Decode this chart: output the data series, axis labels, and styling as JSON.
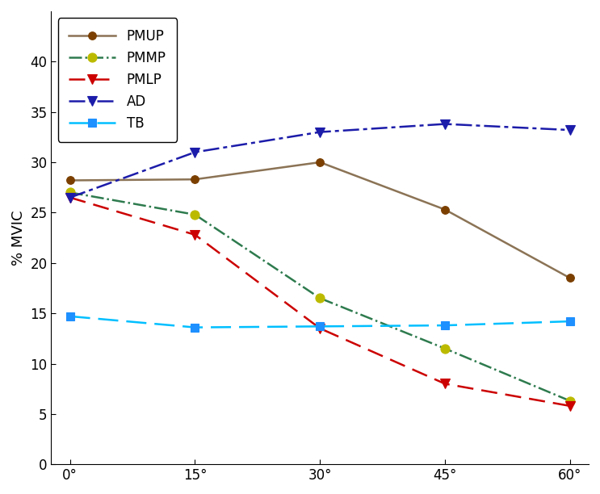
{
  "x_positions": [
    0,
    1,
    2,
    3,
    4
  ],
  "x_labels": [
    "0°",
    "15°",
    "30°",
    "45°",
    "60°"
  ],
  "series": [
    {
      "name": "PMUP",
      "y": [
        28.2,
        28.3,
        30.0,
        25.3,
        18.5
      ],
      "color": "#8B7355",
      "linestyle": "-",
      "marker": "o",
      "mfc": "#7B3F00",
      "mec": "#7B3F00",
      "ms": 7,
      "lw": 1.8,
      "dashes": null
    },
    {
      "name": "PMMP",
      "y": [
        27.0,
        24.8,
        16.5,
        11.5,
        6.3
      ],
      "color": "#2E7B4E",
      "linestyle": "-.",
      "marker": "o",
      "mfc": "#BCBA00",
      "mec": "#BCBA00",
      "ms": 8,
      "lw": 1.8,
      "dashes": null
    },
    {
      "name": "PMLP",
      "y": [
        26.5,
        22.8,
        13.5,
        8.0,
        5.8
      ],
      "color": "#CC0000",
      "linestyle": "--",
      "marker": "v",
      "mfc": "#CC0000",
      "mec": "#CC0000",
      "ms": 8,
      "lw": 1.8,
      "dashes": [
        8,
        4
      ]
    },
    {
      "name": "AD",
      "y": [
        26.5,
        31.0,
        33.0,
        33.8,
        33.2
      ],
      "color": "#1C1CAA",
      "linestyle": "-.",
      "marker": "v",
      "mfc": "#1C1CAA",
      "mec": "#1C1CAA",
      "ms": 8,
      "lw": 1.8,
      "dashes": [
        8,
        2,
        2,
        2
      ]
    },
    {
      "name": "TB",
      "y": [
        14.7,
        13.6,
        13.7,
        13.8,
        14.2
      ],
      "color": "#00BFFF",
      "linestyle": "--",
      "marker": "s",
      "mfc": "#1E90FF",
      "mec": "#1E90FF",
      "ms": 7,
      "lw": 1.8,
      "dashes": [
        10,
        4
      ]
    }
  ],
  "ylabel": "% MVIC",
  "ylim": [
    0,
    45
  ],
  "yticks": [
    0,
    5,
    10,
    15,
    20,
    25,
    30,
    35,
    40
  ],
  "legend_loc": "upper left",
  "legend_fontsize": 12,
  "tick_fontsize": 12,
  "ylabel_fontsize": 13
}
